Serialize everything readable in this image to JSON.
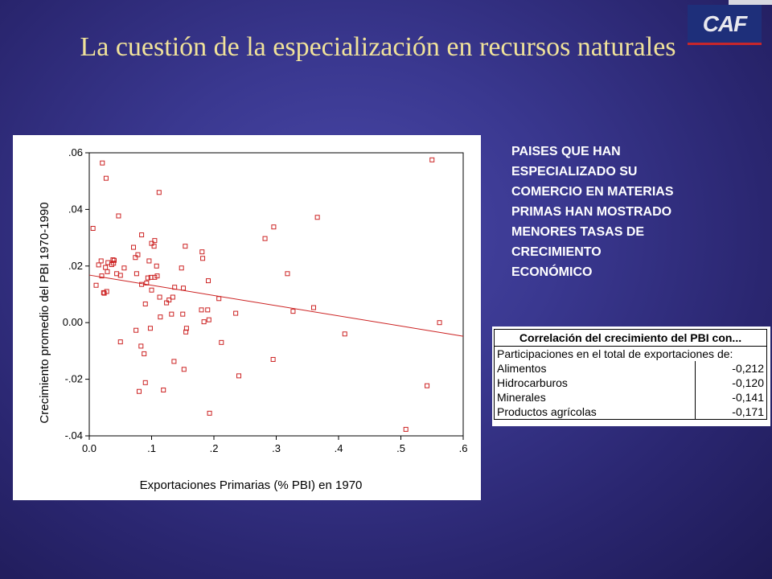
{
  "slide": {
    "title": "La cuestión de la especialización en recursos naturales",
    "logo_text": "CAF"
  },
  "note": {
    "lines": [
      "PAISES QUE HAN",
      "ESPECIALIZADO SU",
      "COMERCIO EN MATERIAS",
      "PRIMAS HAN MOSTRADO",
      "MENORES TASAS DE",
      "CRECIMIENTO",
      "ECONÓMICO"
    ]
  },
  "correlation_table": {
    "header": "Correlación del crecimiento del PBI con...",
    "subheader": "Participaciones en el total de exportaciones de:",
    "rows": [
      {
        "label": "Alimentos",
        "value": "-0,212"
      },
      {
        "label": "Hidrocarburos",
        "value": "-0,120"
      },
      {
        "label": "Minerales",
        "value": "-0,141"
      },
      {
        "label": "Productos agrícolas",
        "value": "-0,171"
      }
    ]
  },
  "chart_data": {
    "type": "scatter",
    "xlabel": "Exportaciones Primarias (% PBI) en 1970",
    "ylabel": "Crecimiento promedio del PBI 1970-1990",
    "xlim": [
      0,
      0.6
    ],
    "ylim": [
      -0.04,
      0.06
    ],
    "x_ticks": [
      0,
      0.1,
      0.2,
      0.3,
      0.4,
      0.5,
      0.6
    ],
    "x_tick_labels": [
      "0.0",
      ".1",
      ".2",
      ".3",
      ".4",
      ".5",
      ".6"
    ],
    "y_ticks": [
      0.06,
      0.04,
      0.02,
      0.0,
      -0.02,
      -0.04
    ],
    "y_tick_labels": [
      ".06",
      ".04",
      ".02",
      "0.00",
      "-.02",
      "-.04"
    ],
    "grid": false,
    "marker_color": "#cc2222",
    "trend_line": {
      "x": [
        0.0,
        0.6
      ],
      "y": [
        0.0168,
        -0.0048
      ],
      "color": "#cc2222"
    },
    "points": [
      [
        0.006,
        0.0333
      ],
      [
        0.011,
        0.0132
      ],
      [
        0.015,
        0.0204
      ],
      [
        0.019,
        0.0218
      ],
      [
        0.02,
        0.0165
      ],
      [
        0.021,
        0.0564
      ],
      [
        0.023,
        0.0106
      ],
      [
        0.024,
        0.0104
      ],
      [
        0.026,
        0.0195
      ],
      [
        0.027,
        0.051
      ],
      [
        0.028,
        0.011
      ],
      [
        0.029,
        0.018
      ],
      [
        0.03,
        0.0212
      ],
      [
        0.036,
        0.0205
      ],
      [
        0.038,
        0.0222
      ],
      [
        0.039,
        0.021
      ],
      [
        0.04,
        0.022
      ],
      [
        0.044,
        0.0173
      ],
      [
        0.047,
        0.0377
      ],
      [
        0.05,
        0.0167
      ],
      [
        0.05,
        -0.0068
      ],
      [
        0.056,
        0.0193
      ],
      [
        0.071,
        0.0266
      ],
      [
        0.074,
        0.023
      ],
      [
        0.075,
        -0.0027
      ],
      [
        0.076,
        0.0173
      ],
      [
        0.078,
        0.024
      ],
      [
        0.08,
        -0.0243
      ],
      [
        0.083,
        -0.0083
      ],
      [
        0.084,
        0.0135
      ],
      [
        0.084,
        0.031
      ],
      [
        0.088,
        -0.011
      ],
      [
        0.09,
        0.0066
      ],
      [
        0.09,
        -0.0212
      ],
      [
        0.092,
        0.014
      ],
      [
        0.094,
        0.0158
      ],
      [
        0.096,
        0.0218
      ],
      [
        0.098,
        -0.002
      ],
      [
        0.099,
        0.016
      ],
      [
        0.1,
        0.028
      ],
      [
        0.1,
        0.0115
      ],
      [
        0.104,
        0.027
      ],
      [
        0.105,
        0.029
      ],
      [
        0.105,
        0.016
      ],
      [
        0.108,
        0.02
      ],
      [
        0.109,
        0.0165
      ],
      [
        0.112,
        0.046
      ],
      [
        0.113,
        0.009
      ],
      [
        0.114,
        0.002
      ],
      [
        0.119,
        -0.0238
      ],
      [
        0.124,
        0.007
      ],
      [
        0.128,
        0.008
      ],
      [
        0.132,
        0.003
      ],
      [
        0.134,
        0.009
      ],
      [
        0.136,
        -0.0137
      ],
      [
        0.137,
        0.0125
      ],
      [
        0.148,
        0.0193
      ],
      [
        0.15,
        0.003
      ],
      [
        0.151,
        0.0122
      ],
      [
        0.152,
        -0.0165
      ],
      [
        0.154,
        0.027
      ],
      [
        0.155,
        -0.0033
      ],
      [
        0.156,
        -0.002
      ],
      [
        0.18,
        0.0045
      ],
      [
        0.181,
        0.025
      ],
      [
        0.182,
        0.0227
      ],
      [
        0.184,
        0.0003
      ],
      [
        0.19,
        0.0045
      ],
      [
        0.191,
        0.0148
      ],
      [
        0.192,
        0.001
      ],
      [
        0.193,
        -0.032
      ],
      [
        0.208,
        0.0085
      ],
      [
        0.212,
        -0.007
      ],
      [
        0.235,
        0.0033
      ],
      [
        0.24,
        -0.0188
      ],
      [
        0.282,
        0.0297
      ],
      [
        0.295,
        -0.013
      ],
      [
        0.296,
        0.0338
      ],
      [
        0.318,
        0.0173
      ],
      [
        0.327,
        0.004
      ],
      [
        0.36,
        0.0053
      ],
      [
        0.366,
        0.0372
      ],
      [
        0.41,
        -0.004
      ],
      [
        0.508,
        -0.0377
      ],
      [
        0.542,
        -0.0223
      ],
      [
        0.55,
        0.0575
      ],
      [
        0.562,
        0.0
      ]
    ]
  }
}
